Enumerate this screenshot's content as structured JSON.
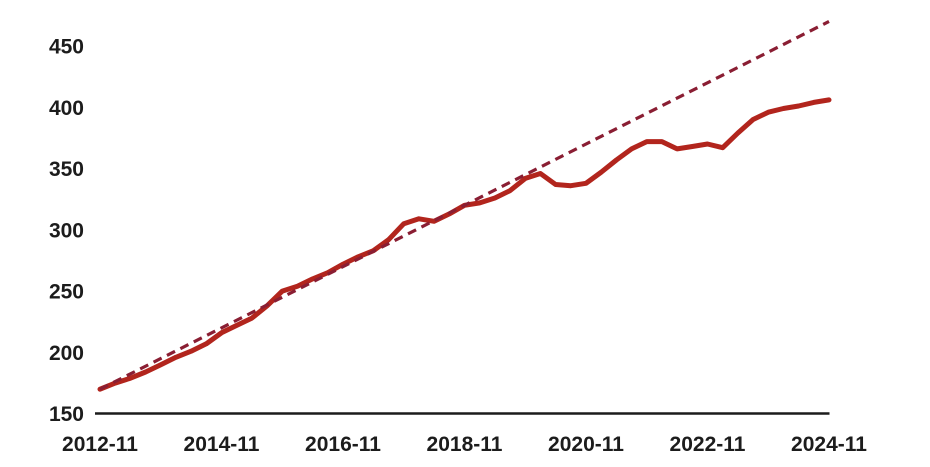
{
  "chart_data": {
    "type": "line",
    "title": "",
    "xlabel": "",
    "ylabel": "",
    "grid": "off",
    "legend": "none",
    "y_axis_range": [
      150,
      475
    ],
    "y_ticks": [
      "150",
      "200",
      "250",
      "300",
      "350",
      "400",
      "450"
    ],
    "x_ticks": [
      "2012-11",
      "2014-11",
      "2016-11",
      "2018-11",
      "2020-11",
      "2022-11",
      "2024-11"
    ],
    "x": [
      "2012-11",
      "2013-02",
      "2013-05",
      "2013-08",
      "2013-11",
      "2014-02",
      "2014-05",
      "2014-08",
      "2014-11",
      "2015-02",
      "2015-05",
      "2015-08",
      "2015-11",
      "2016-02",
      "2016-05",
      "2016-08",
      "2016-11",
      "2017-02",
      "2017-05",
      "2017-08",
      "2017-11",
      "2018-02",
      "2018-05",
      "2018-08",
      "2018-11",
      "2019-02",
      "2019-05",
      "2019-08",
      "2019-11",
      "2020-02",
      "2020-05",
      "2020-08",
      "2020-11",
      "2021-02",
      "2021-05",
      "2021-08",
      "2021-11",
      "2022-02",
      "2022-05",
      "2022-08",
      "2022-11",
      "2023-02",
      "2023-05",
      "2023-08",
      "2023-11",
      "2024-02",
      "2024-05",
      "2024-08",
      "2024-11"
    ],
    "series": [
      {
        "name": "solid-line",
        "style": "solid",
        "color": "#b2251d",
        "values": [
          170,
          175,
          179,
          184,
          190,
          196,
          201,
          207,
          216,
          222,
          228,
          238,
          250,
          254,
          260,
          265,
          272,
          278,
          283,
          292,
          305,
          309,
          307,
          313,
          320,
          322,
          326,
          332,
          342,
          346,
          337,
          336,
          338,
          347,
          357,
          366,
          372,
          372,
          366,
          368,
          370,
          367,
          379,
          390,
          396,
          399,
          401,
          404,
          406
        ]
      },
      {
        "name": "dashed-trendline",
        "style": "dashed",
        "color": "#8a1e33",
        "points": {
          "start": {
            "x": "2012-11",
            "value": 170
          },
          "end": {
            "x": "2024-11",
            "value": 470
          }
        }
      }
    ],
    "notable_points": {
      "start_value": 170,
      "local_peak": {
        "x": "2020-01",
        "value": 347
      },
      "dip_bottom": {
        "x": "2020-08",
        "value": 336
      },
      "end_value": 406,
      "trend_end_value": 470
    }
  },
  "colors": {
    "background": "#ffffff",
    "axis": "#1c1c1c",
    "tick_text": "#1c1c1c",
    "solid_line": "#b2251d",
    "dashed_line": "#8a1e33"
  }
}
